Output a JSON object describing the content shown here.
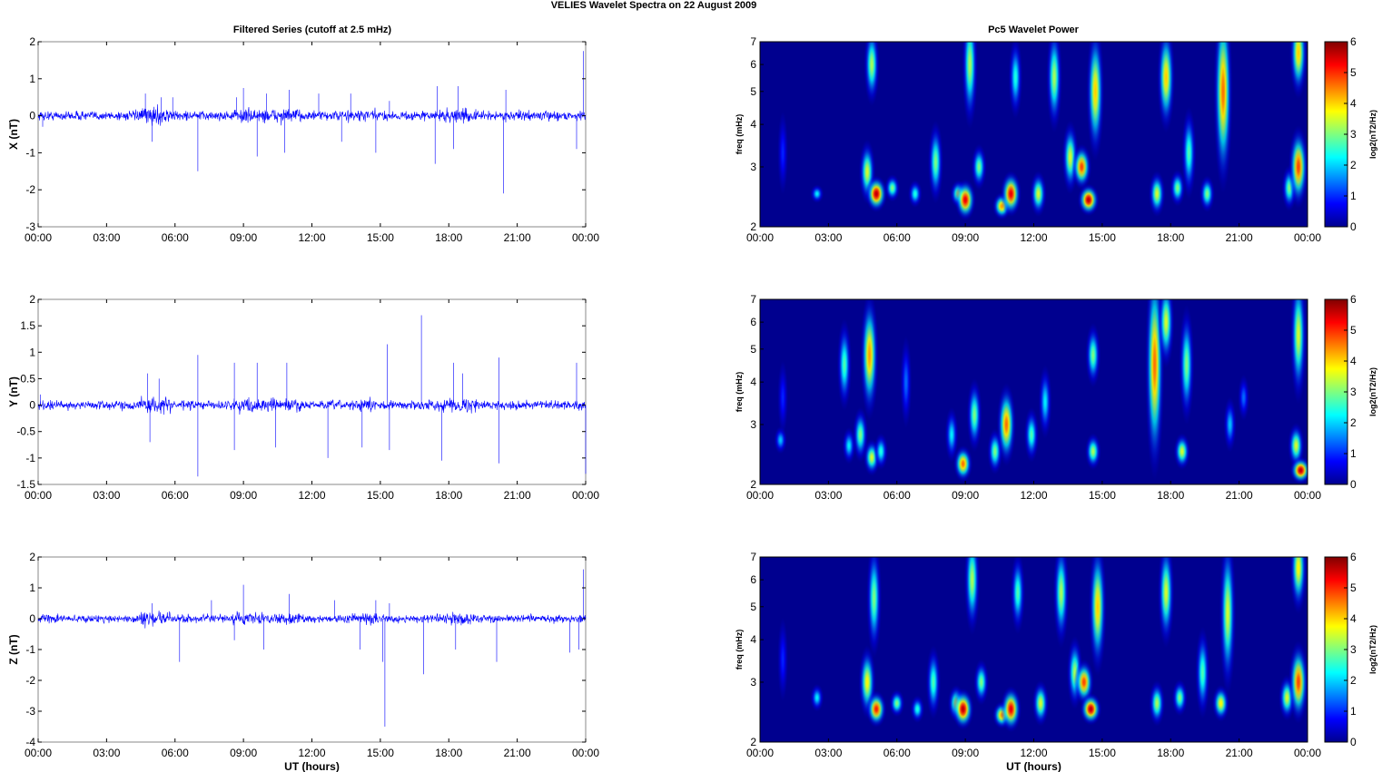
{
  "suptitle": "VELIES Wavelet Spectra on 22 August    2009",
  "left_title": "Filtered Series (cutoff at 2.5 mHz)",
  "right_title": "Pc5 Wavelet Power",
  "colors": {
    "trace": "#0000ff",
    "background": "#00008f"
  },
  "chart_data": [
    {
      "type": "line",
      "id": "ts-x",
      "ylabel": "X (nT)",
      "xlabel": "",
      "xticks": [
        "00:00",
        "03:00",
        "06:00",
        "09:00",
        "12:00",
        "15:00",
        "18:00",
        "21:00",
        "00:00"
      ],
      "yticks": [
        "2",
        "1",
        "0",
        "-1",
        "-2",
        "-3"
      ],
      "ylim": [
        -3,
        2
      ],
      "xlim_hours": [
        0,
        24
      ],
      "noise": 0.12,
      "spikes": [
        [
          0.2,
          -0.3
        ],
        [
          4.7,
          0.6
        ],
        [
          5.0,
          -0.7
        ],
        [
          5.4,
          0.5
        ],
        [
          5.9,
          0.5
        ],
        [
          7.0,
          -1.5
        ],
        [
          8.7,
          0.5
        ],
        [
          9.0,
          0.75
        ],
        [
          9.6,
          -1.1
        ],
        [
          10.0,
          0.6
        ],
        [
          10.8,
          -1.0
        ],
        [
          11.0,
          0.7
        ],
        [
          12.3,
          0.6
        ],
        [
          13.3,
          -0.7
        ],
        [
          13.7,
          0.6
        ],
        [
          14.8,
          -1.0
        ],
        [
          15.4,
          0.4
        ],
        [
          17.4,
          -1.3
        ],
        [
          17.5,
          0.8
        ],
        [
          18.2,
          -0.9
        ],
        [
          18.4,
          0.8
        ],
        [
          20.4,
          -2.1
        ],
        [
          20.5,
          0.7
        ],
        [
          23.6,
          -0.9
        ],
        [
          23.9,
          1.75
        ]
      ]
    },
    {
      "type": "line",
      "id": "ts-y",
      "ylabel": "Y (nT)",
      "xlabel": "",
      "xticks": [
        "00:00",
        "03:00",
        "06:00",
        "09:00",
        "12:00",
        "15:00",
        "18:00",
        "21:00",
        "00:00"
      ],
      "yticks": [
        "2",
        "1.5",
        "1",
        "0.5",
        "0",
        "-0.5",
        "-1",
        "-1.5"
      ],
      "ylim": [
        -1.5,
        2
      ],
      "xlim_hours": [
        0,
        24
      ],
      "noise": 0.08,
      "spikes": [
        [
          0.1,
          0.2
        ],
        [
          4.8,
          0.6
        ],
        [
          4.9,
          -0.7
        ],
        [
          5.3,
          0.5
        ],
        [
          7.0,
          0.95
        ],
        [
          7.0,
          -1.35
        ],
        [
          8.6,
          0.8
        ],
        [
          8.6,
          -0.85
        ],
        [
          9.6,
          0.8
        ],
        [
          10.4,
          -0.8
        ],
        [
          10.9,
          0.8
        ],
        [
          12.7,
          -1.0
        ],
        [
          14.2,
          -0.8
        ],
        [
          15.3,
          1.15
        ],
        [
          15.4,
          -0.85
        ],
        [
          16.8,
          1.7
        ],
        [
          17.7,
          -1.05
        ],
        [
          18.2,
          0.8
        ],
        [
          18.6,
          0.6
        ],
        [
          20.2,
          0.9
        ],
        [
          20.2,
          -1.1
        ],
        [
          23.6,
          0.8
        ],
        [
          24.0,
          -1.3
        ]
      ]
    },
    {
      "type": "line",
      "id": "ts-z",
      "ylabel": "Z (nT)",
      "xlabel": "UT (hours)",
      "xticks": [
        "00:00",
        "03:00",
        "06:00",
        "09:00",
        "12:00",
        "15:00",
        "18:00",
        "21:00",
        "00:00"
      ],
      "yticks": [
        "2",
        "1",
        "0",
        "-1",
        "-2",
        "-3",
        "-4"
      ],
      "ylim": [
        -4,
        2
      ],
      "xlim_hours": [
        0,
        24
      ],
      "noise": 0.12,
      "spikes": [
        [
          5.0,
          0.5
        ],
        [
          6.2,
          -1.4
        ],
        [
          7.6,
          0.6
        ],
        [
          8.6,
          -0.7
        ],
        [
          9.0,
          1.1
        ],
        [
          9.9,
          -1.0
        ],
        [
          11.0,
          0.8
        ],
        [
          13.0,
          0.6
        ],
        [
          14.1,
          -1.0
        ],
        [
          14.8,
          0.6
        ],
        [
          15.1,
          -1.4
        ],
        [
          15.2,
          -3.5
        ],
        [
          15.4,
          0.5
        ],
        [
          16.9,
          -1.8
        ],
        [
          18.3,
          -1.0
        ],
        [
          20.1,
          -1.4
        ],
        [
          23.3,
          -1.1
        ],
        [
          23.7,
          -1.0
        ],
        [
          23.9,
          1.6
        ]
      ]
    },
    {
      "type": "heatmap",
      "id": "wv-x",
      "ylabel": "freq (mHz)",
      "xlabel": "",
      "cbar_label": "log2(nT2/Hz)",
      "xticks": [
        "00:00",
        "03:00",
        "06:00",
        "09:00",
        "12:00",
        "15:00",
        "18:00",
        "21:00",
        "00:00"
      ],
      "yticks": [
        "7",
        "6",
        "5",
        "4",
        "3",
        "2"
      ],
      "freq_range": [
        2,
        7
      ],
      "cbar_ticks": [
        "6",
        "5",
        "4",
        "3",
        "2",
        "1",
        "0"
      ],
      "cbar_range": [
        0,
        6
      ],
      "blobs": [
        [
          1.0,
          3.3,
          0.9,
          0.12
        ],
        [
          2.5,
          2.5,
          0.2,
          0.35
        ],
        [
          4.7,
          2.9,
          0.7,
          0.6
        ],
        [
          4.9,
          6.0,
          0.9,
          0.55
        ],
        [
          5.1,
          2.5,
          0.4,
          1.0
        ],
        [
          5.8,
          2.6,
          0.3,
          0.5
        ],
        [
          6.8,
          2.5,
          0.3,
          0.4
        ],
        [
          7.7,
          3.1,
          0.9,
          0.5
        ],
        [
          8.7,
          2.5,
          0.3,
          0.6
        ],
        [
          9.0,
          2.4,
          0.45,
          0.95
        ],
        [
          9.2,
          6.0,
          1.4,
          0.55
        ],
        [
          9.6,
          3.0,
          0.5,
          0.5
        ],
        [
          10.6,
          2.3,
          0.3,
          0.75
        ],
        [
          11.0,
          2.5,
          0.5,
          0.95
        ],
        [
          11.2,
          5.5,
          0.9,
          0.4
        ],
        [
          12.2,
          2.5,
          0.5,
          0.6
        ],
        [
          12.9,
          5.5,
          1.2,
          0.55
        ],
        [
          13.6,
          3.2,
          0.8,
          0.6
        ],
        [
          14.1,
          3.0,
          0.5,
          0.85
        ],
        [
          14.4,
          2.4,
          0.35,
          1.0
        ],
        [
          14.7,
          5.0,
          1.5,
          0.7
        ],
        [
          17.4,
          2.5,
          0.5,
          0.6
        ],
        [
          17.8,
          5.5,
          1.2,
          0.7
        ],
        [
          18.3,
          2.6,
          0.4,
          0.5
        ],
        [
          18.8,
          3.3,
          1.0,
          0.45
        ],
        [
          19.6,
          2.5,
          0.4,
          0.5
        ],
        [
          20.3,
          5.0,
          2.2,
          0.8
        ],
        [
          23.2,
          2.6,
          0.5,
          0.5
        ],
        [
          23.6,
          3.0,
          0.9,
          0.85
        ],
        [
          23.6,
          6.5,
          1.0,
          0.7
        ]
      ]
    },
    {
      "type": "heatmap",
      "id": "wv-y",
      "ylabel": "freq (mHz)",
      "xlabel": "",
      "cbar_label": "log2(nT2/Hz)",
      "xticks": [
        "00:00",
        "03:00",
        "06:00",
        "09:00",
        "12:00",
        "15:00",
        "18:00",
        "21:00",
        "00:00"
      ],
      "yticks": [
        "7",
        "6",
        "5",
        "4",
        "3",
        "2"
      ],
      "freq_range": [
        2,
        7
      ],
      "cbar_ticks": [
        "6",
        "5",
        "4",
        "3",
        "2",
        "1",
        "0"
      ],
      "cbar_range": [
        0,
        6
      ],
      "blobs": [
        [
          0.9,
          2.7,
          0.3,
          0.3
        ],
        [
          1.0,
          3.6,
          0.8,
          0.12
        ],
        [
          3.7,
          4.5,
          1.0,
          0.45
        ],
        [
          3.9,
          2.6,
          0.4,
          0.35
        ],
        [
          4.4,
          2.8,
          0.6,
          0.5
        ],
        [
          4.8,
          4.8,
          1.4,
          0.75
        ],
        [
          4.9,
          2.4,
          0.4,
          0.6
        ],
        [
          5.3,
          2.5,
          0.4,
          0.4
        ],
        [
          6.4,
          4.0,
          1.0,
          0.2
        ],
        [
          8.4,
          2.8,
          0.6,
          0.35
        ],
        [
          8.9,
          2.3,
          0.4,
          0.8
        ],
        [
          9.4,
          3.2,
          0.8,
          0.5
        ],
        [
          10.3,
          2.5,
          0.5,
          0.5
        ],
        [
          10.8,
          3.0,
          0.9,
          0.8
        ],
        [
          11.9,
          2.8,
          0.6,
          0.45
        ],
        [
          12.5,
          3.5,
          0.8,
          0.35
        ],
        [
          14.6,
          2.5,
          0.4,
          0.55
        ],
        [
          14.6,
          4.8,
          0.7,
          0.5
        ],
        [
          17.3,
          4.5,
          2.5,
          0.8
        ],
        [
          17.8,
          6.0,
          1.0,
          0.6
        ],
        [
          18.5,
          2.5,
          0.4,
          0.6
        ],
        [
          18.7,
          4.5,
          1.3,
          0.5
        ],
        [
          20.6,
          3.0,
          0.6,
          0.3
        ],
        [
          21.2,
          3.6,
          0.5,
          0.2
        ],
        [
          23.5,
          2.6,
          0.5,
          0.6
        ],
        [
          23.7,
          2.2,
          0.3,
          1.0
        ],
        [
          23.6,
          5.5,
          1.5,
          0.6
        ]
      ]
    },
    {
      "type": "heatmap",
      "id": "wv-z",
      "ylabel": "freq (mHz)",
      "xlabel": "UT (hours)",
      "cbar_label": "log2(nT2/Hz)",
      "xticks": [
        "00:00",
        "03:00",
        "06:00",
        "09:00",
        "12:00",
        "15:00",
        "18:00",
        "21:00",
        "00:00"
      ],
      "yticks": [
        "7",
        "6",
        "5",
        "4",
        "3",
        "2"
      ],
      "freq_range": [
        2,
        7
      ],
      "cbar_ticks": [
        "6",
        "5",
        "4",
        "3",
        "2",
        "1",
        "0"
      ],
      "cbar_range": [
        0,
        6
      ],
      "blobs": [
        [
          1.0,
          3.5,
          0.9,
          0.12
        ],
        [
          2.5,
          2.7,
          0.3,
          0.35
        ],
        [
          4.7,
          3.0,
          0.8,
          0.65
        ],
        [
          5.0,
          5.3,
          1.3,
          0.5
        ],
        [
          5.1,
          2.5,
          0.4,
          0.9
        ],
        [
          6.0,
          2.6,
          0.3,
          0.5
        ],
        [
          6.9,
          2.5,
          0.3,
          0.4
        ],
        [
          7.6,
          3.0,
          0.8,
          0.45
        ],
        [
          8.6,
          2.6,
          0.4,
          0.6
        ],
        [
          8.9,
          2.5,
          0.45,
          1.0
        ],
        [
          9.3,
          6.0,
          1.2,
          0.55
        ],
        [
          9.7,
          3.0,
          0.5,
          0.5
        ],
        [
          10.6,
          2.4,
          0.3,
          0.75
        ],
        [
          11.0,
          2.5,
          0.5,
          0.95
        ],
        [
          11.3,
          5.5,
          0.9,
          0.45
        ],
        [
          12.3,
          2.6,
          0.5,
          0.6
        ],
        [
          13.2,
          5.5,
          1.2,
          0.55
        ],
        [
          13.8,
          3.2,
          0.8,
          0.55
        ],
        [
          14.2,
          3.0,
          0.5,
          0.85
        ],
        [
          14.5,
          2.5,
          0.35,
          1.0
        ],
        [
          14.8,
          5.0,
          1.5,
          0.7
        ],
        [
          17.4,
          2.6,
          0.5,
          0.55
        ],
        [
          17.8,
          5.5,
          1.2,
          0.6
        ],
        [
          18.4,
          2.7,
          0.4,
          0.5
        ],
        [
          19.4,
          3.2,
          1.0,
          0.45
        ],
        [
          20.2,
          2.6,
          0.4,
          0.65
        ],
        [
          20.5,
          4.8,
          1.8,
          0.6
        ],
        [
          23.1,
          2.7,
          0.5,
          0.6
        ],
        [
          23.6,
          3.0,
          0.9,
          0.85
        ],
        [
          23.6,
          6.5,
          1.0,
          0.65
        ]
      ]
    }
  ]
}
